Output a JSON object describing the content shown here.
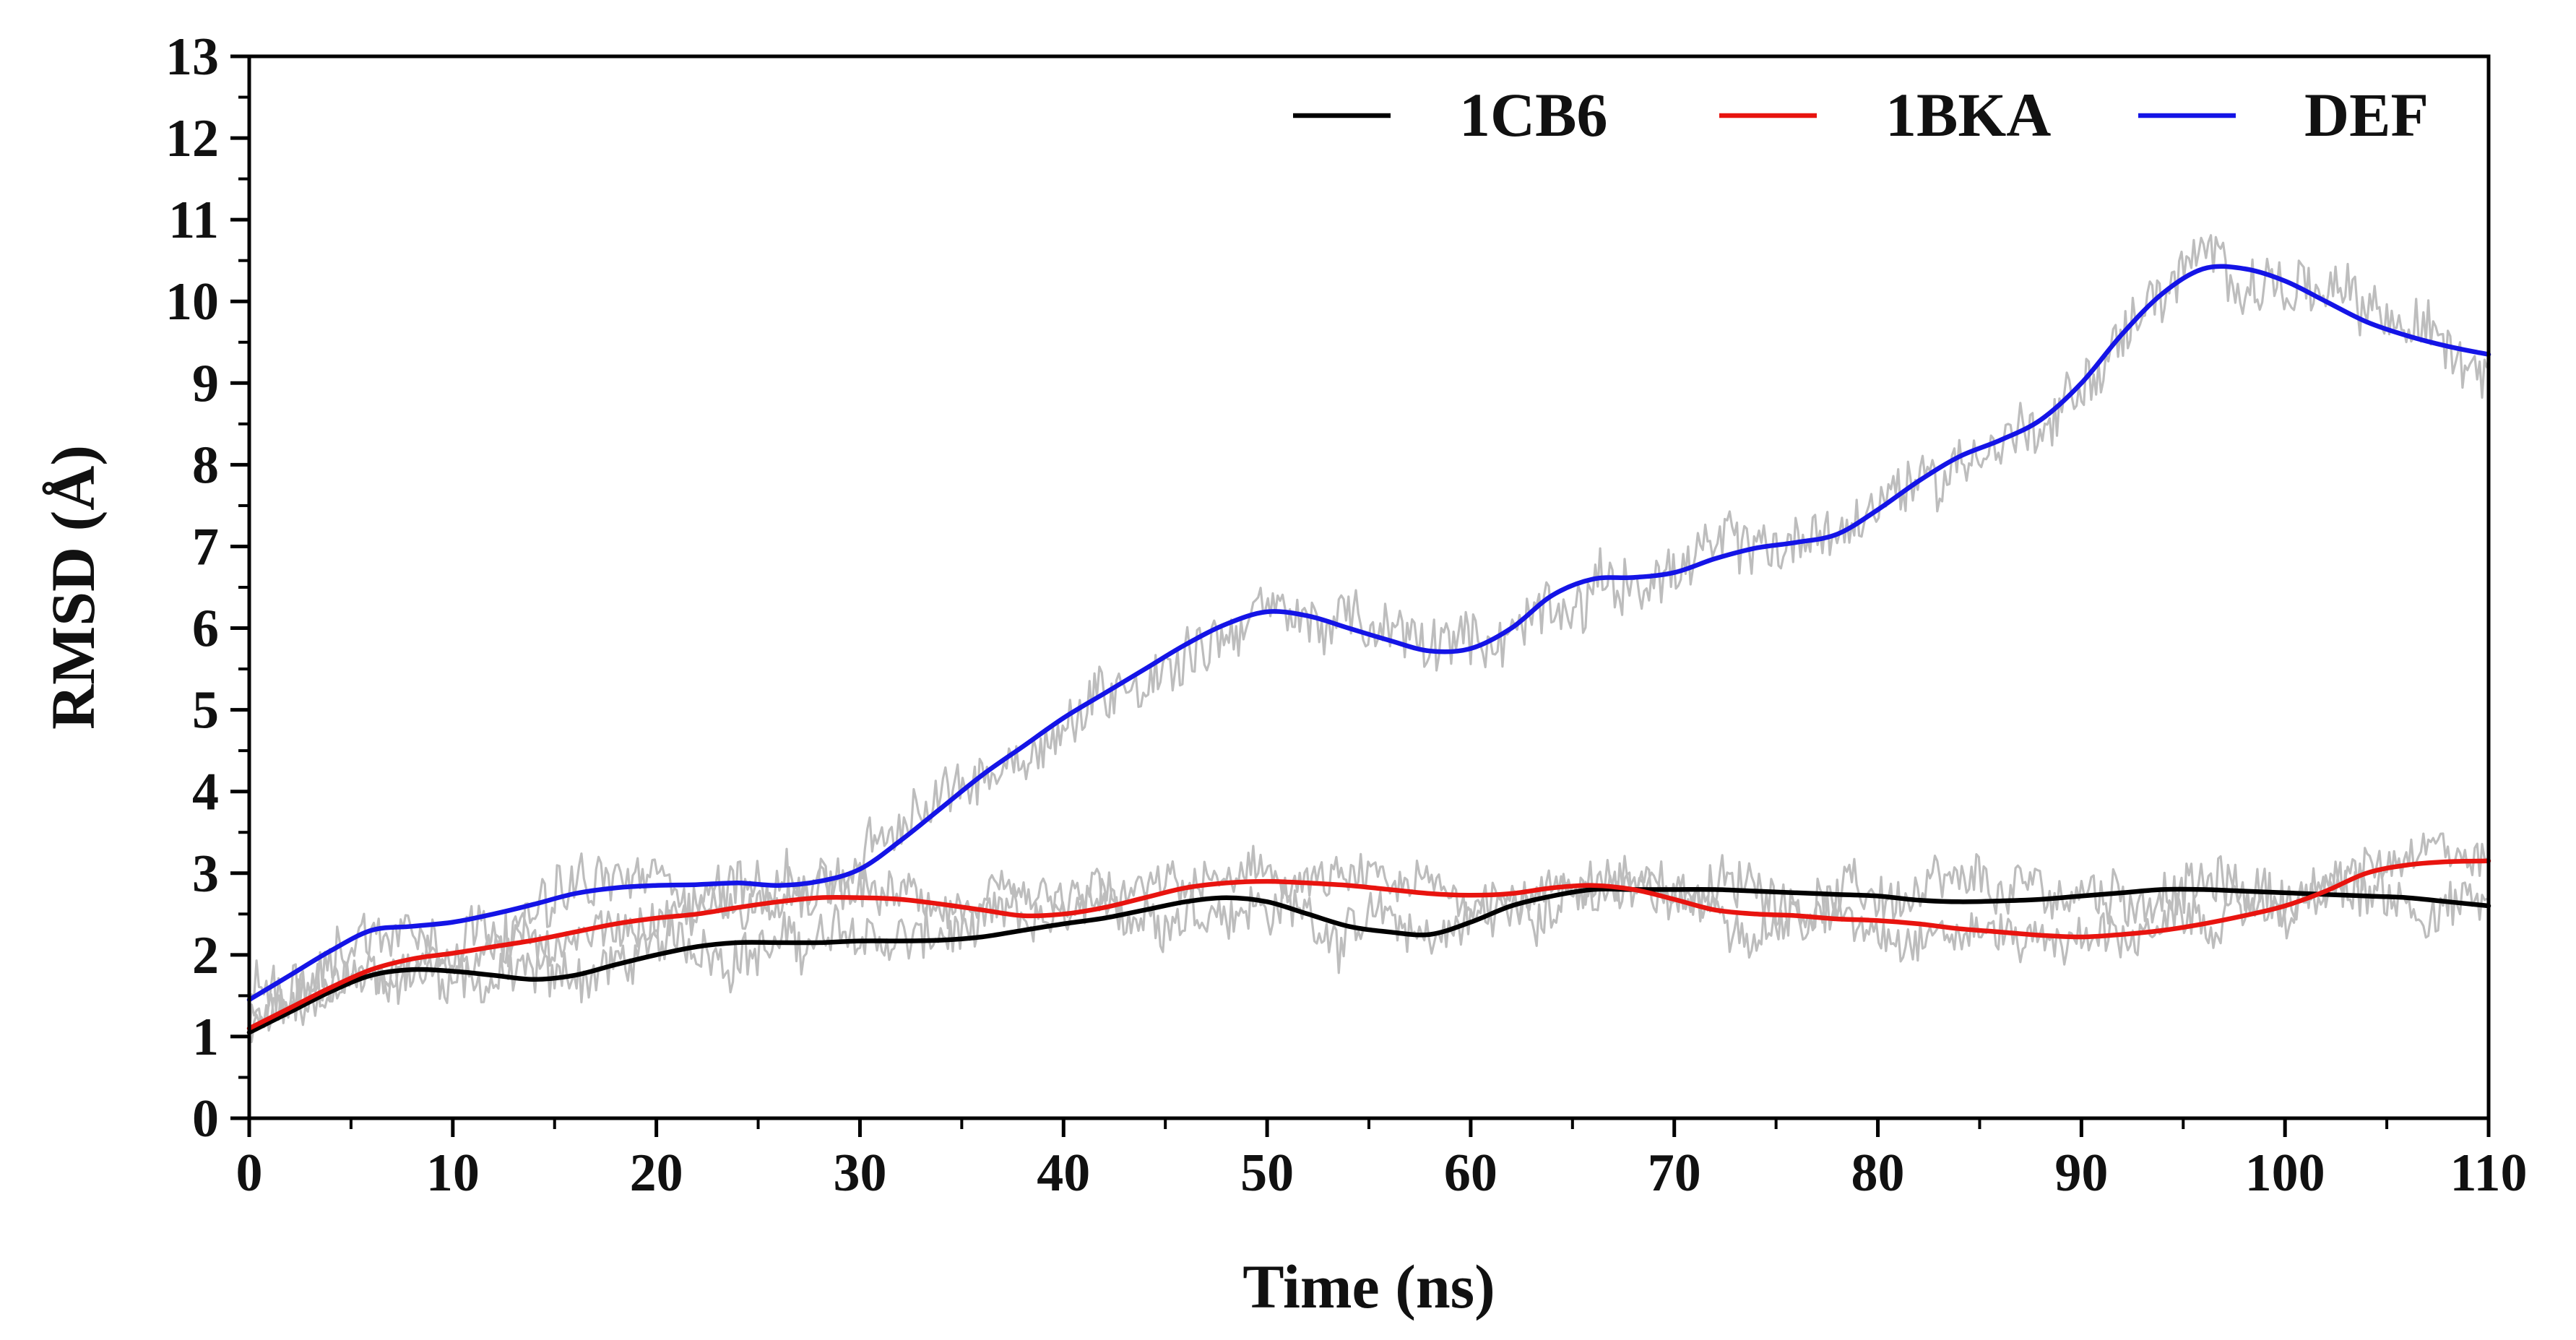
{
  "chart_data": {
    "type": "line",
    "title": "",
    "xlabel": "Time (ns)",
    "ylabel": "RMSD (Å)",
    "xlim": [
      0,
      110
    ],
    "ylim": [
      0,
      13
    ],
    "x_ticks": [
      0,
      10,
      20,
      30,
      40,
      50,
      60,
      70,
      80,
      90,
      100,
      110
    ],
    "y_ticks": [
      0,
      1,
      2,
      3,
      4,
      5,
      6,
      7,
      8,
      9,
      10,
      11,
      12,
      13
    ],
    "x_tick_labels": [
      "0",
      "10",
      "20",
      "30",
      "40",
      "50",
      "60",
      "70",
      "80",
      "90",
      "100",
      "110"
    ],
    "y_tick_labels": [
      "0",
      "1",
      "2",
      "3",
      "4",
      "5",
      "6",
      "7",
      "8",
      "9",
      "10",
      "11",
      "12",
      "13"
    ],
    "grid": false,
    "legend_position": "top-right",
    "raw_data_color": "#bdbdbd",
    "x": [
      0,
      2,
      4,
      6,
      8,
      10,
      12,
      14,
      16,
      18,
      20,
      22,
      24,
      26,
      28,
      30,
      32,
      34,
      36,
      38,
      40,
      42,
      44,
      46,
      48,
      50,
      52,
      54,
      56,
      58,
      60,
      62,
      64,
      66,
      68,
      70,
      72,
      74,
      76,
      78,
      80,
      82,
      84,
      86,
      88,
      90,
      92,
      94,
      96,
      98,
      100,
      102,
      104,
      106,
      108,
      110
    ],
    "series": [
      {
        "name": "1CB6",
        "color": "#000000",
        "values": [
          1.05,
          1.3,
          1.55,
          1.75,
          1.82,
          1.8,
          1.75,
          1.7,
          1.75,
          1.88,
          2.0,
          2.1,
          2.15,
          2.15,
          2.15,
          2.17,
          2.17,
          2.18,
          2.22,
          2.3,
          2.38,
          2.45,
          2.55,
          2.65,
          2.7,
          2.65,
          2.5,
          2.35,
          2.28,
          2.25,
          2.4,
          2.6,
          2.72,
          2.8,
          2.8,
          2.8,
          2.8,
          2.78,
          2.76,
          2.74,
          2.72,
          2.67,
          2.65,
          2.66,
          2.68,
          2.72,
          2.76,
          2.8,
          2.8,
          2.78,
          2.76,
          2.74,
          2.72,
          2.7,
          2.65,
          2.6
        ]
      },
      {
        "name": "1BKA",
        "color": "#e8140f",
        "values": [
          1.1,
          1.35,
          1.6,
          1.82,
          1.95,
          2.02,
          2.1,
          2.18,
          2.28,
          2.38,
          2.45,
          2.5,
          2.58,
          2.65,
          2.7,
          2.7,
          2.68,
          2.62,
          2.55,
          2.48,
          2.5,
          2.58,
          2.7,
          2.82,
          2.88,
          2.9,
          2.88,
          2.85,
          2.8,
          2.75,
          2.73,
          2.75,
          2.82,
          2.85,
          2.8,
          2.68,
          2.55,
          2.5,
          2.48,
          2.44,
          2.42,
          2.38,
          2.32,
          2.28,
          2.24,
          2.22,
          2.25,
          2.3,
          2.38,
          2.48,
          2.6,
          2.78,
          3.0,
          3.1,
          3.14,
          3.15
        ]
      },
      {
        "name": "DEF",
        "color": "#1414e6",
        "values": [
          1.45,
          1.75,
          2.05,
          2.3,
          2.35,
          2.4,
          2.5,
          2.62,
          2.75,
          2.82,
          2.85,
          2.86,
          2.88,
          2.85,
          2.9,
          3.05,
          3.4,
          3.8,
          4.2,
          4.55,
          4.9,
          5.2,
          5.5,
          5.8,
          6.05,
          6.2,
          6.15,
          6.0,
          5.85,
          5.72,
          5.75,
          6.0,
          6.4,
          6.6,
          6.62,
          6.68,
          6.85,
          6.98,
          7.05,
          7.15,
          7.45,
          7.8,
          8.1,
          8.3,
          8.55,
          9.0,
          9.6,
          10.1,
          10.4,
          10.4,
          10.25,
          10.0,
          9.75,
          9.58,
          9.45,
          9.35
        ]
      }
    ]
  }
}
